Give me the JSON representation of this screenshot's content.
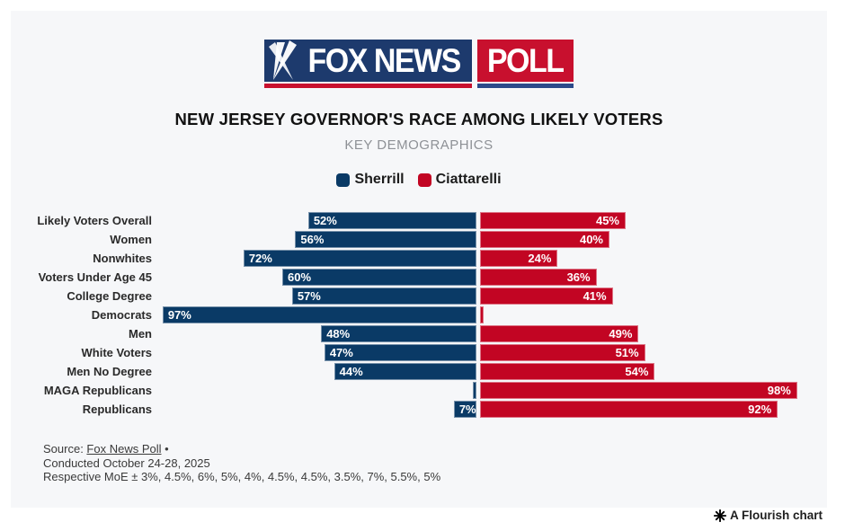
{
  "colors": {
    "background": "#F6F7F9",
    "sherrill_blue": "#0A3A66",
    "ciattarelli_red": "#C20523",
    "logo_blue": "#1D3A6D",
    "logo_red": "#C8102E",
    "logo_underline_blue": "#2C4A8A"
  },
  "logo": {
    "left_text": "FOX NEWS",
    "right_text": "POLL",
    "icon": "searchlight-icon"
  },
  "chart_data": {
    "type": "bar",
    "orientation": "diverging-horizontal",
    "title": "NEW JERSEY GOVERNOR'S RACE AMONG LIKELY VOTERS",
    "subtitle": "KEY DEMOGRAPHICS",
    "xlim": [
      0,
      100
    ],
    "value_suffix": "%",
    "legend_position": "top-center",
    "grid": false,
    "categories": [
      "Likely Voters Overall",
      "Women",
      "Nonwhites",
      "Voters Under Age 45",
      "College Degree",
      "Democrats",
      "Men",
      "White Voters",
      "Men No Degree",
      "MAGA Republicans",
      "Republicans"
    ],
    "series": [
      {
        "name": "Sherrill",
        "color": "#0A3A66",
        "values": [
          52,
          56,
          72,
          60,
          57,
          97,
          48,
          47,
          44,
          1,
          7
        ],
        "labels": [
          "52%",
          "56%",
          "72%",
          "60%",
          "57%",
          "97%",
          "48%",
          "47%",
          "44%",
          "",
          "7%"
        ]
      },
      {
        "name": "Ciattarelli",
        "color": "#C20523",
        "values": [
          45,
          40,
          24,
          36,
          41,
          1,
          49,
          51,
          54,
          98,
          92
        ],
        "labels": [
          "45%",
          "40%",
          "24%",
          "36%",
          "41%",
          "",
          "49%",
          "51%",
          "54%",
          "98%",
          "92%"
        ]
      }
    ]
  },
  "footer": {
    "source_prefix": "Source: ",
    "source_link": "Fox News Poll",
    "source_suffix": " •",
    "line2": "Conducted October 24-28, 2025",
    "line3": "Respective MoE ± 3%, 4.5%, 6%, 5%, 4%, 4.5%, 4.5%, 3.5%, 7%, 5.5%, 5%"
  },
  "credit": {
    "icon": "flourish-star-icon",
    "label": "A Flourish chart"
  }
}
